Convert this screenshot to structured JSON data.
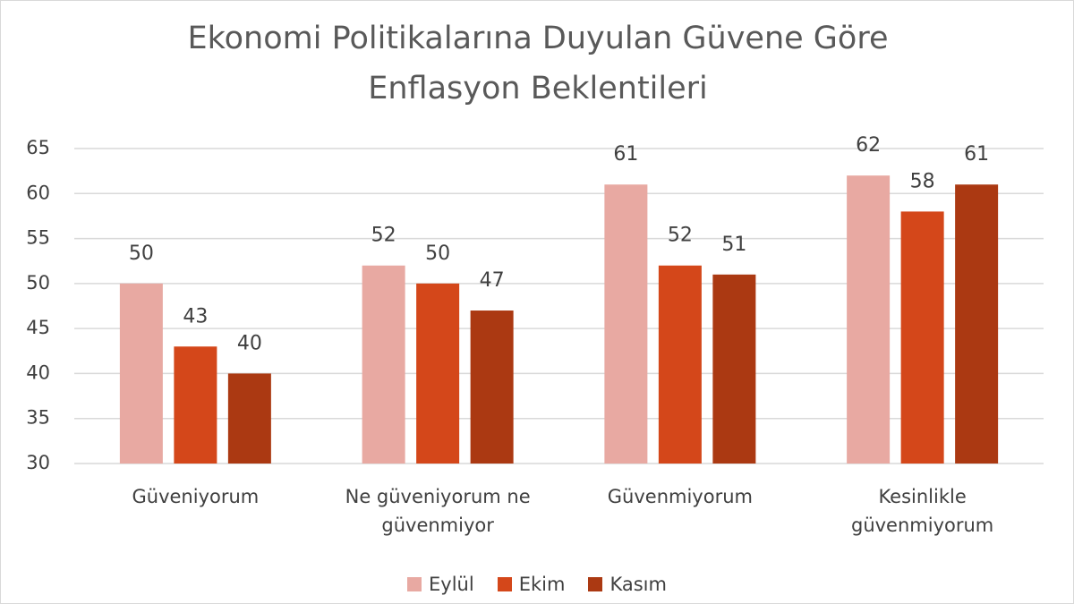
{
  "chart_data": {
    "type": "bar",
    "title": "Ekonomi Politikalarına Duyulan Güvene Göre Enflasyon Beklentileri",
    "categories": [
      "Güveniyorum",
      "Ne güveniyorum ne güvenmiyor",
      "Güvenmiyorum",
      "Kesinlikle güvenmiyorum"
    ],
    "series": [
      {
        "name": "Eylül",
        "color": "#e8a9a2",
        "values": [
          50,
          52,
          61,
          62
        ]
      },
      {
        "name": "Ekim",
        "color": "#d4471a",
        "values": [
          43,
          50,
          52,
          58
        ]
      },
      {
        "name": "Kasım",
        "color": "#ab3912",
        "values": [
          40,
          47,
          51,
          61
        ]
      }
    ],
    "ylim": [
      30,
      65
    ],
    "yticks": [
      30,
      35,
      40,
      45,
      50,
      55,
      60,
      65
    ],
    "grid": true,
    "legend": "bottom"
  }
}
